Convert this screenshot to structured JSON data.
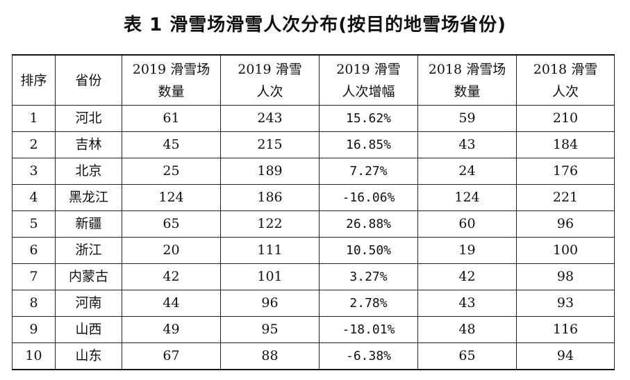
{
  "title": "表 1 滑雪场滑雪人次分布(按目的地雪场省份)",
  "table": {
    "headers": [
      [
        "排序"
      ],
      [
        "省份"
      ],
      [
        "2019 滑雪场",
        "数量"
      ],
      [
        "2019 滑雪",
        "人次"
      ],
      [
        "2019 滑雪",
        "人次增幅"
      ],
      [
        "2018 滑雪场",
        "数量"
      ],
      [
        "2018 滑雪",
        "人次"
      ]
    ],
    "rows": [
      [
        "1",
        "河北",
        "61",
        "243",
        "15.62%",
        "59",
        "210"
      ],
      [
        "2",
        "吉林",
        "45",
        "215",
        "16.85%",
        "43",
        "184"
      ],
      [
        "3",
        "北京",
        "25",
        "189",
        "7.27%",
        "24",
        "176"
      ],
      [
        "4",
        "黑龙江",
        "124",
        "186",
        "-16.06%",
        "124",
        "221"
      ],
      [
        "5",
        "新疆",
        "65",
        "122",
        "26.88%",
        "60",
        "96"
      ],
      [
        "6",
        "浙江",
        "20",
        "111",
        "10.50%",
        "19",
        "100"
      ],
      [
        "7",
        "内蒙古",
        "42",
        "101",
        "3.27%",
        "42",
        "98"
      ],
      [
        "8",
        "河南",
        "44",
        "96",
        "2.78%",
        "43",
        "93"
      ],
      [
        "9",
        "山西",
        "49",
        "95",
        "-18.01%",
        "48",
        "116"
      ],
      [
        "10",
        "山东",
        "67",
        "88",
        "-6.38%",
        "65",
        "94"
      ]
    ]
  }
}
